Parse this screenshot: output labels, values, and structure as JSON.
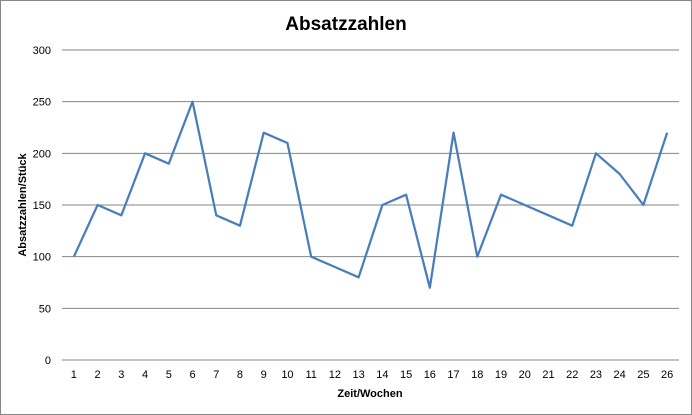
{
  "chart_data": {
    "type": "line",
    "title": "Absatzzahlen",
    "xlabel": "Zeit/Wochen",
    "ylabel": "Absatzzahlen/Stück",
    "categories": [
      "1",
      "2",
      "3",
      "4",
      "5",
      "6",
      "7",
      "8",
      "9",
      "10",
      "11",
      "12",
      "13",
      "14",
      "15",
      "16",
      "17",
      "18",
      "19",
      "20",
      "21",
      "22",
      "23",
      "24",
      "25",
      "26"
    ],
    "series": [
      {
        "values": [
          100,
          150,
          140,
          200,
          190,
          250,
          140,
          130,
          220,
          210,
          100,
          90,
          80,
          150,
          160,
          70,
          220,
          100,
          160,
          150,
          140,
          130,
          200,
          180,
          150,
          220
        ],
        "color": "#4a7ebb"
      }
    ],
    "ylim": [
      0,
      300
    ],
    "yticks": [
      0,
      50,
      100,
      150,
      200,
      250,
      300
    ],
    "grid": true,
    "legend": "none",
    "colors": {
      "gridline": "#868686",
      "axis": "#868686",
      "line": "#4a7ebb"
    }
  }
}
